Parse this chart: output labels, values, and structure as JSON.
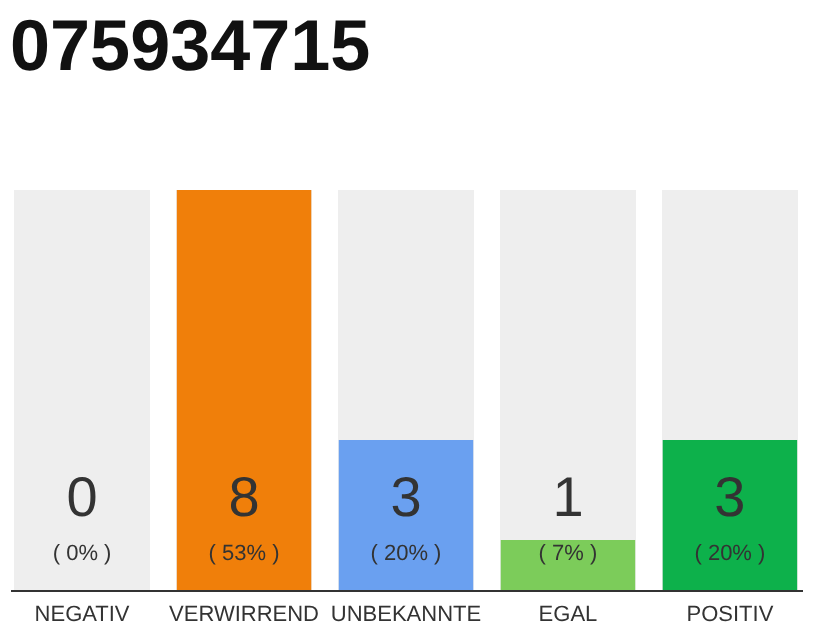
{
  "chart_data": {
    "type": "bar",
    "title": "075934715",
    "categories": [
      "NEGATIV",
      "VERWIRREND",
      "UNBEKANNTE",
      "EGAL",
      "POSITIV"
    ],
    "values": [
      0,
      8,
      3,
      1,
      3
    ],
    "colors": [
      "#f07f0a",
      "#f07f0a",
      "#6aa0f0",
      "#7ccc5a",
      "#0db14b"
    ],
    "data_labels": true,
    "annotations": [
      "( 0% )",
      "( 53% )",
      "( 20% )",
      "( 7% )",
      "( 20% )"
    ]
  }
}
